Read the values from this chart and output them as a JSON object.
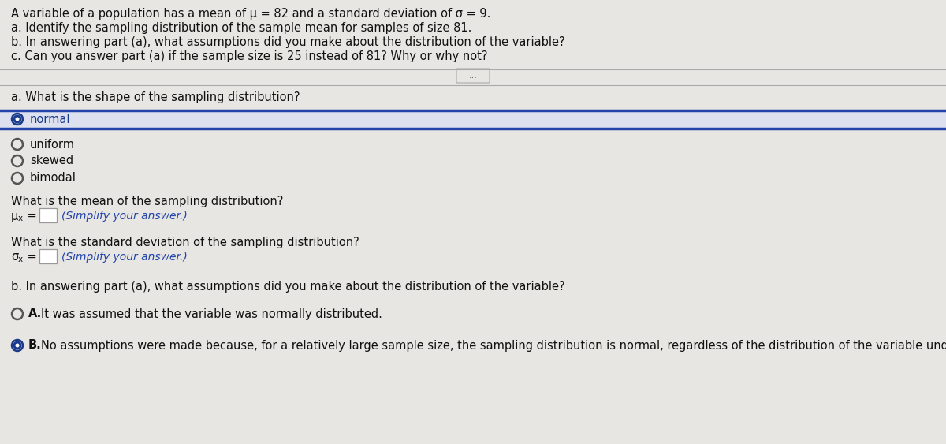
{
  "outer_bg": "#c8c5c0",
  "inner_bg": "#e8e6e2",
  "header_bg": "#e8e6e2",
  "header_text": [
    "A variable of a population has a mean of μ = 82 and a standard deviation of σ = 9.",
    "a. Identify the sampling distribution of the sample mean for samples of size 81.",
    "b. In answering part (a), what assumptions did you make about the distribution of the variable?",
    "c. Can you answer part (a) if the sample size is 25 instead of 81? Why or why not?"
  ],
  "divider_dots": "⋯",
  "section_a_label": "a. What is the shape of the sampling distribution?",
  "radio_options": [
    {
      "text": "normal",
      "selected": true
    },
    {
      "text": "uniform",
      "selected": false
    },
    {
      "text": "skewed",
      "selected": false
    },
    {
      "text": "bimodal",
      "selected": false
    }
  ],
  "selected_row_border": "#2244aa",
  "selected_row_bg": "#dde0ee",
  "mean_question": "What is the mean of the sampling distribution?",
  "mean_label_main": "μ",
  "mean_label_sub": "x",
  "mean_label_eq": " =",
  "mean_hint": "(Simplify your answer.)",
  "std_question": "What is the standard deviation of the sampling distribution?",
  "std_label_main": "σ",
  "std_label_sub": "x",
  "std_label_eq": " =",
  "std_hint": "(Simplify your answer.)",
  "section_b_label": "b. In answering part (a), what assumptions did you make about the distribution of the variable?",
  "answer_options": [
    {
      "letter": "A.",
      "text": "It was assumed that the variable was normally distributed.",
      "selected": false
    },
    {
      "letter": "B.",
      "text": "No assumptions were made because, for a relatively large sample size, the sampling distribution is normal, regardless of the distribution of the variable under consideratio",
      "selected": true
    }
  ],
  "text_color": "#111111",
  "bold_label_color": "#111111",
  "radio_color_selected": "#1a3a8c",
  "radio_color_unselected": "#555555",
  "hint_color": "#2244aa",
  "box_border_color": "#999999",
  "divider_color": "#aaaaaa",
  "header_font_size": 10.5,
  "body_font_size": 10.5,
  "hint_font_size": 10.0
}
